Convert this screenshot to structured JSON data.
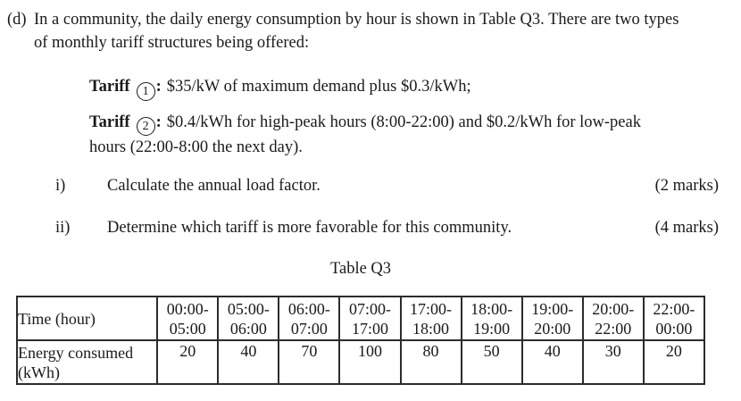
{
  "question": {
    "part_label": "(d)",
    "intro_lines": [
      "In a community, the daily energy consumption by hour is shown in Table Q3. There are two types",
      "of monthly tariff structures being offered:"
    ],
    "tariffs": [
      {
        "name": "Tariff",
        "number": "1",
        "colon": ":",
        "lines": [
          "$35/kW of maximum demand plus $0.3/kWh;"
        ]
      },
      {
        "name": "Tariff",
        "number": "2",
        "colon": ":",
        "lines": [
          "$0.4/kWh for high-peak hours (8:00-22:00) and $0.2/kWh for low-peak",
          "hours (22:00-8:00 the next day)."
        ]
      }
    ],
    "subquestions": [
      {
        "numeral": "i)",
        "text": "Calculate the annual load factor.",
        "marks": "(2 marks)"
      },
      {
        "numeral": "ii)",
        "text": "Determine which tariff is more favorable for this community.",
        "marks": "(4 marks)"
      }
    ]
  },
  "table": {
    "caption": "Table Q3",
    "row_headers": {
      "time": "Time (hour)",
      "energy_line1": "Energy consumed",
      "energy_line2": "(kWh)"
    },
    "time_slots": [
      {
        "from": "00:00-",
        "to": "05:00",
        "energy": "20"
      },
      {
        "from": "05:00-",
        "to": "06:00",
        "energy": "40"
      },
      {
        "from": "06:00-",
        "to": "07:00",
        "energy": "70"
      },
      {
        "from": "07:00-",
        "to": "17:00",
        "energy": "100"
      },
      {
        "from": "17:00-",
        "to": "18:00",
        "energy": "80"
      },
      {
        "from": "18:00-",
        "to": "19:00",
        "energy": "50"
      },
      {
        "from": "19:00-",
        "to": "20:00",
        "energy": "40"
      },
      {
        "from": "20:00-",
        "to": "22:00",
        "energy": "30"
      },
      {
        "from": "22:00-",
        "to": "00:00",
        "energy": "20"
      }
    ]
  }
}
